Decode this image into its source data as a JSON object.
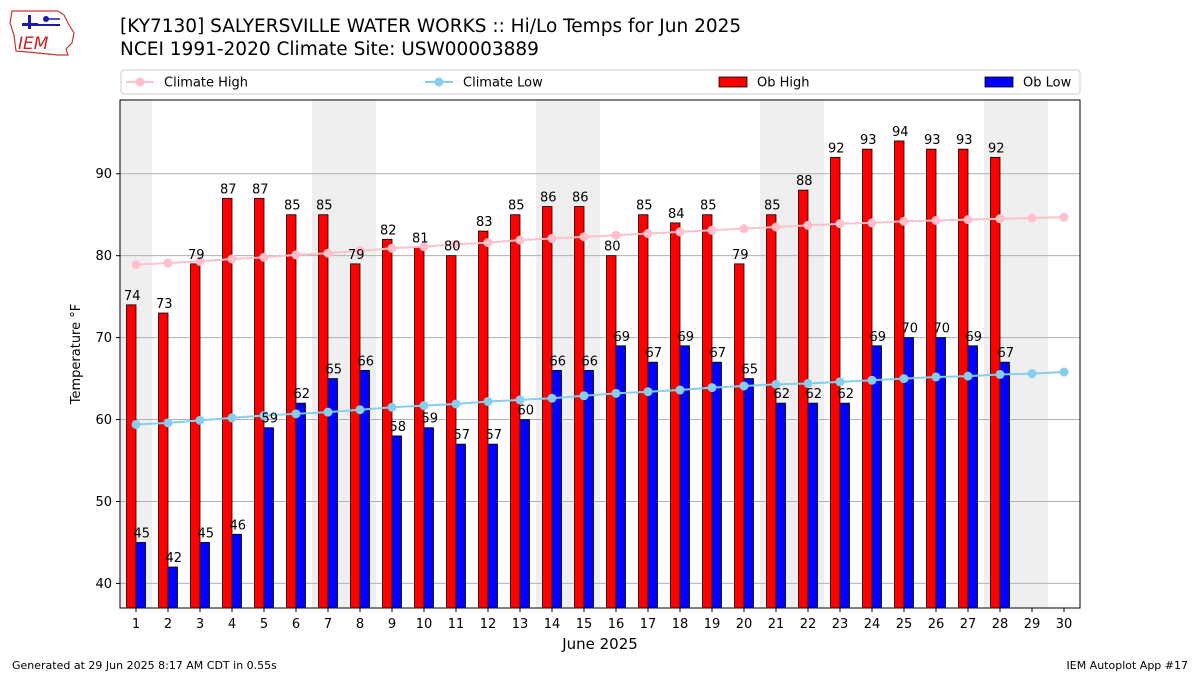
{
  "header": {
    "title_line1": "[KY7130] SALYERSVILLE WATER WORKS :: Hi/Lo Temps for Jun 2025",
    "title_line2": "NCEI 1991-2020 Climate Site: USW00003889",
    "logo_text": "IEM"
  },
  "footer": {
    "generated": "Generated at 29 Jun 2025 8:17 AM CDT in 0.55s",
    "app": "IEM Autoplot App #17"
  },
  "chart_data": {
    "type": "bar",
    "xlabel": "June 2025",
    "ylabel": "Temperature °F",
    "ylim": [
      37,
      99
    ],
    "yticks": [
      40,
      50,
      60,
      70,
      80,
      90
    ],
    "grid": "horizontal",
    "legend": "top",
    "days": [
      1,
      2,
      3,
      4,
      5,
      6,
      7,
      8,
      9,
      10,
      11,
      12,
      13,
      14,
      15,
      16,
      17,
      18,
      19,
      20,
      21,
      22,
      23,
      24,
      25,
      26,
      27,
      28,
      29,
      30
    ],
    "weekend_shaded_days": [
      1,
      7,
      8,
      14,
      15,
      21,
      22,
      28,
      29
    ],
    "series": [
      {
        "name": "Climate High",
        "kind": "line",
        "color": "#ffc0cb",
        "values": [
          78.9,
          79.1,
          79.3,
          79.6,
          79.8,
          80.1,
          80.3,
          80.6,
          80.9,
          81.1,
          81.4,
          81.6,
          81.9,
          82.1,
          82.3,
          82.5,
          82.7,
          82.9,
          83.1,
          83.3,
          83.5,
          83.7,
          83.9,
          84.0,
          84.2,
          84.3,
          84.4,
          84.5,
          84.6,
          84.7
        ]
      },
      {
        "name": "Climate Low",
        "kind": "line",
        "color": "#87ceeb",
        "values": [
          59.4,
          59.6,
          59.9,
          60.2,
          60.5,
          60.7,
          60.9,
          61.2,
          61.5,
          61.7,
          61.9,
          62.2,
          62.4,
          62.6,
          62.9,
          63.2,
          63.4,
          63.6,
          63.9,
          64.1,
          64.3,
          64.4,
          64.6,
          64.8,
          65.0,
          65.2,
          65.3,
          65.5,
          65.6,
          65.8
        ]
      },
      {
        "name": "Ob High",
        "kind": "bar",
        "color": "#ff0000",
        "values": [
          74,
          73,
          79,
          87,
          87,
          85,
          85,
          79,
          82,
          81,
          80,
          83,
          85,
          86,
          86,
          80,
          85,
          84,
          85,
          79,
          85,
          88,
          92,
          93,
          94,
          93,
          93,
          92
        ]
      },
      {
        "name": "Ob Low",
        "kind": "bar",
        "color": "#0000ff",
        "values": [
          45,
          42,
          45,
          46,
          59,
          62,
          65,
          66,
          58,
          59,
          57,
          57,
          60,
          66,
          66,
          69,
          67,
          69,
          67,
          65,
          62,
          62,
          62,
          69,
          70,
          70,
          69,
          67
        ]
      }
    ]
  }
}
